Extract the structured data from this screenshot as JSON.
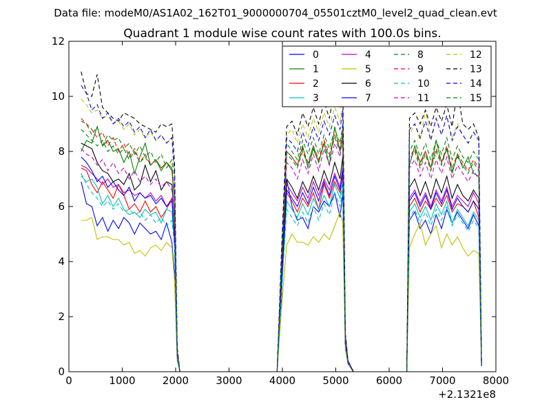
{
  "suptitle": "Data file: modeM0/AS1A02_162T01_9000000704_05501cztM0_level2_quad_clean.evt",
  "chart_data": {
    "type": "line",
    "title": "Quadrant 1 module wise count rates with 100.0s bins.",
    "xlabel": "",
    "ylabel": "",
    "x_offset_label": "+2.1321e8",
    "xlim": [
      0,
      8000
    ],
    "ylim": [
      0,
      12
    ],
    "xticks": [
      0,
      1000,
      2000,
      3000,
      4000,
      5000,
      6000,
      7000,
      8000
    ],
    "yticks": [
      0,
      2,
      4,
      6,
      8,
      10,
      12
    ],
    "grid": false,
    "legend_position": "top-right",
    "x": [
      230,
      330,
      430,
      530,
      630,
      730,
      830,
      930,
      1030,
      1130,
      1230,
      1330,
      1430,
      1530,
      1630,
      1730,
      1830,
      1930,
      1980,
      2030,
      2080,
      2150,
      3900,
      3980,
      4080,
      4180,
      4280,
      4380,
      4480,
      4580,
      4680,
      4780,
      4880,
      4980,
      5080,
      5130,
      5180,
      5230,
      5330,
      6330,
      6380,
      6480,
      6580,
      6680,
      6780,
      6880,
      6980,
      7080,
      7180,
      7280,
      7380,
      7480,
      7580,
      7680,
      7730
    ],
    "series": [
      {
        "name": "0",
        "color": "#0000ff",
        "dashed": false,
        "values": [
          6.9,
          6.1,
          6.0,
          5.3,
          5.6,
          5.1,
          5.5,
          5.2,
          5.6,
          5.4,
          5.0,
          5.4,
          5.2,
          5.0,
          5.1,
          4.8,
          5.4,
          4.7,
          3.5,
          0.5,
          0.0,
          0.0,
          0.0,
          2.5,
          7.0,
          6.0,
          5.5,
          5.6,
          5.2,
          6.0,
          5.8,
          6.2,
          6.0,
          6.5,
          5.6,
          6.5,
          1.0,
          0.3,
          0.0,
          0.0,
          5.5,
          5.8,
          5.2,
          5.5,
          5.0,
          5.7,
          5.2,
          5.9,
          5.4,
          5.8,
          5.5,
          5.2,
          5.7,
          5.3,
          0.2
        ]
      },
      {
        "name": "1",
        "color": "#008000",
        "dashed": false,
        "values": [
          8.0,
          8.4,
          8.3,
          8.9,
          8.2,
          8.4,
          8.0,
          8.1,
          7.6,
          8.0,
          7.2,
          7.8,
          8.3,
          7.5,
          7.7,
          7.3,
          7.6,
          7.4,
          6.2,
          0.7,
          0.0,
          0.0,
          0.0,
          3.5,
          8.0,
          7.8,
          7.5,
          8.2,
          7.4,
          8.1,
          7.6,
          8.3,
          7.5,
          8.9,
          8.0,
          8.5,
          1.1,
          0.4,
          0.0,
          0.0,
          7.5,
          8.2,
          7.6,
          8.0,
          7.4,
          8.4,
          7.6,
          8.1,
          7.2,
          7.9,
          7.4,
          7.8,
          7.2,
          7.1,
          0.3
        ]
      },
      {
        "name": "2",
        "color": "#ff0000",
        "dashed": false,
        "values": [
          7.4,
          7.3,
          6.8,
          6.5,
          6.9,
          6.6,
          6.3,
          6.8,
          6.4,
          5.9,
          6.1,
          5.8,
          6.2,
          5.8,
          6.0,
          5.6,
          5.9,
          6.3,
          4.8,
          0.5,
          0.0,
          0.0,
          0.0,
          3.0,
          6.5,
          6.2,
          5.8,
          6.3,
          6.0,
          6.5,
          5.9,
          6.8,
          6.3,
          6.9,
          6.5,
          7.2,
          1.0,
          0.3,
          0.0,
          0.0,
          6.0,
          6.3,
          5.8,
          6.2,
          5.9,
          6.3,
          6.0,
          6.4,
          5.8,
          6.1,
          6.0,
          5.8,
          6.2,
          5.6,
          0.3
        ]
      },
      {
        "name": "3",
        "color": "#00bfbf",
        "dashed": false,
        "values": [
          7.1,
          6.9,
          7.0,
          6.7,
          6.1,
          6.4,
          6.0,
          6.3,
          5.9,
          5.7,
          5.8,
          5.6,
          5.9,
          5.7,
          5.8,
          5.4,
          5.9,
          5.8,
          4.7,
          0.5,
          0.0,
          0.0,
          0.0,
          2.8,
          6.2,
          5.9,
          5.6,
          6.1,
          5.7,
          6.3,
          5.9,
          6.4,
          6.0,
          6.8,
          6.3,
          6.9,
          1.0,
          0.3,
          0.0,
          0.0,
          5.8,
          6.1,
          5.6,
          6.0,
          5.5,
          6.1,
          5.7,
          6.2,
          5.4,
          5.9,
          5.6,
          5.3,
          5.8,
          5.5,
          0.2
        ]
      },
      {
        "name": "4",
        "color": "#bf00bf",
        "dashed": false,
        "values": [
          7.5,
          7.4,
          7.2,
          7.0,
          6.8,
          7.0,
          6.7,
          6.8,
          6.5,
          6.6,
          6.4,
          6.5,
          6.3,
          6.5,
          6.2,
          6.4,
          6.0,
          6.3,
          4.9,
          0.6,
          0.0,
          0.0,
          0.0,
          3.1,
          6.8,
          6.5,
          6.2,
          6.7,
          6.3,
          6.9,
          6.4,
          7.0,
          6.6,
          7.2,
          6.7,
          7.4,
          1.0,
          0.3,
          0.0,
          0.0,
          6.3,
          6.6,
          6.1,
          6.5,
          6.0,
          6.6,
          6.2,
          6.7,
          6.0,
          6.4,
          6.2,
          6.0,
          6.5,
          6.1,
          0.3
        ]
      },
      {
        "name": "5",
        "color": "#bfbf00",
        "dashed": false,
        "values": [
          5.5,
          5.5,
          5.6,
          4.8,
          4.9,
          4.9,
          4.8,
          4.8,
          4.6,
          4.7,
          4.3,
          4.4,
          4.2,
          4.5,
          4.6,
          4.4,
          4.7,
          4.5,
          3.3,
          0.4,
          0.0,
          0.0,
          0.0,
          2.2,
          4.6,
          5.0,
          4.7,
          4.7,
          4.6,
          4.9,
          4.7,
          5.0,
          4.8,
          5.3,
          5.8,
          5.4,
          0.8,
          0.3,
          0.0,
          0.0,
          4.5,
          5.0,
          5.4,
          4.6,
          5.0,
          5.3,
          4.5,
          5.0,
          4.6,
          4.9,
          4.5,
          4.2,
          4.4,
          4.3,
          0.2
        ]
      },
      {
        "name": "6",
        "color": "#000000",
        "dashed": false,
        "values": [
          8.3,
          8.2,
          8.1,
          7.6,
          7.3,
          7.2,
          6.9,
          7.0,
          6.8,
          7.2,
          6.6,
          6.8,
          7.5,
          6.9,
          7.3,
          6.6,
          6.9,
          6.8,
          5.5,
          0.6,
          0.0,
          0.0,
          0.0,
          3.2,
          7.0,
          6.7,
          6.3,
          6.9,
          6.5,
          7.1,
          6.6,
          7.3,
          6.8,
          7.6,
          7.0,
          7.8,
          1.0,
          0.3,
          0.0,
          0.0,
          6.7,
          7.0,
          6.4,
          6.9,
          6.3,
          7.0,
          6.5,
          7.1,
          6.3,
          6.8,
          6.4,
          6.2,
          6.6,
          6.3,
          0.3
        ]
      },
      {
        "name": "7",
        "color": "#0000ff",
        "dashed": false,
        "values": [
          7.8,
          7.6,
          7.3,
          6.9,
          7.1,
          6.7,
          6.9,
          6.6,
          6.4,
          6.7,
          6.2,
          6.5,
          6.3,
          6.4,
          6.1,
          6.3,
          6.0,
          6.2,
          4.8,
          0.5,
          0.0,
          0.0,
          0.0,
          3.0,
          6.6,
          6.3,
          6.0,
          6.5,
          6.1,
          6.7,
          6.2,
          6.9,
          6.4,
          7.1,
          6.6,
          7.3,
          1.0,
          0.3,
          0.0,
          0.0,
          6.2,
          6.5,
          6.0,
          6.4,
          5.9,
          6.5,
          6.1,
          6.6,
          5.9,
          6.3,
          6.0,
          5.8,
          6.2,
          5.9,
          0.2
        ]
      },
      {
        "name": "8",
        "color": "#008000",
        "dashed": true,
        "values": [
          9.1,
          9.0,
          8.6,
          8.9,
          8.2,
          8.6,
          8.4,
          8.5,
          8.1,
          8.3,
          7.9,
          8.2,
          7.8,
          8.0,
          7.6,
          7.9,
          7.4,
          7.7,
          6.3,
          0.7,
          0.0,
          0.0,
          0.0,
          3.7,
          8.3,
          8.0,
          7.7,
          8.4,
          7.9,
          8.5,
          7.9,
          8.6,
          8.1,
          8.8,
          8.3,
          9.0,
          1.2,
          0.4,
          0.0,
          0.0,
          8.0,
          8.4,
          7.8,
          8.3,
          7.7,
          8.4,
          7.9,
          8.5,
          7.7,
          8.2,
          7.8,
          7.6,
          8.0,
          7.7,
          0.3
        ]
      },
      {
        "name": "9",
        "color": "#ff0000",
        "dashed": true,
        "values": [
          9.2,
          9.0,
          8.8,
          8.5,
          8.7,
          8.2,
          8.5,
          8.0,
          8.3,
          7.8,
          8.1,
          7.6,
          7.9,
          7.5,
          7.7,
          7.4,
          7.6,
          7.3,
          6.2,
          0.7,
          0.0,
          0.0,
          0.0,
          3.6,
          8.0,
          7.8,
          7.5,
          8.1,
          7.6,
          8.2,
          7.7,
          8.4,
          7.9,
          8.6,
          8.1,
          8.8,
          1.1,
          0.4,
          0.0,
          0.0,
          7.8,
          8.1,
          7.5,
          8.0,
          7.4,
          8.1,
          7.6,
          8.2,
          7.4,
          7.9,
          7.6,
          7.3,
          7.7,
          7.4,
          0.3
        ]
      },
      {
        "name": "10",
        "color": "#00bfbf",
        "dashed": true,
        "values": [
          7.2,
          6.8,
          6.5,
          6.3,
          6.0,
          6.2,
          5.9,
          6.1,
          5.8,
          5.9,
          5.7,
          5.8,
          5.5,
          5.7,
          5.4,
          5.6,
          5.3,
          5.5,
          4.5,
          0.5,
          0.0,
          0.0,
          0.0,
          2.7,
          5.9,
          5.6,
          5.3,
          5.8,
          5.4,
          6.0,
          5.5,
          6.1,
          5.7,
          6.5,
          6.0,
          6.7,
          1.0,
          0.3,
          0.0,
          0.0,
          5.6,
          5.9,
          5.4,
          5.8,
          5.3,
          5.9,
          5.5,
          6.0,
          5.3,
          5.7,
          5.4,
          5.1,
          5.5,
          5.2,
          0.2
        ]
      },
      {
        "name": "11",
        "color": "#bf00bf",
        "dashed": true,
        "values": [
          8.1,
          7.9,
          7.8,
          7.5,
          7.7,
          7.3,
          7.6,
          7.2,
          7.4,
          7.0,
          7.3,
          6.9,
          7.1,
          6.8,
          7.0,
          6.7,
          6.9,
          6.6,
          5.6,
          0.6,
          0.0,
          0.0,
          0.0,
          3.4,
          7.6,
          7.4,
          7.0,
          7.7,
          7.2,
          7.9,
          7.3,
          8.1,
          7.5,
          8.3,
          7.8,
          8.5,
          1.1,
          0.3,
          0.0,
          0.0,
          7.4,
          7.7,
          7.1,
          7.6,
          7.0,
          7.7,
          7.2,
          7.8,
          7.0,
          7.5,
          7.2,
          6.9,
          7.3,
          7.0,
          0.3
        ]
      },
      {
        "name": "12",
        "color": "#bfbf00",
        "dashed": true,
        "values": [
          9.9,
          9.7,
          9.4,
          9.5,
          9.2,
          9.3,
          9.0,
          9.1,
          8.8,
          9.0,
          8.6,
          8.8,
          8.5,
          8.7,
          8.4,
          8.6,
          8.3,
          8.5,
          7.2,
          0.8,
          0.0,
          0.0,
          0.0,
          4.0,
          8.6,
          8.8,
          8.3,
          9.0,
          8.5,
          9.2,
          8.7,
          9.4,
          8.9,
          9.6,
          9.1,
          9.8,
          1.3,
          0.4,
          0.0,
          0.0,
          8.6,
          9.0,
          8.4,
          9.5,
          8.5,
          9.2,
          8.6,
          9.3,
          8.5,
          9.0,
          8.6,
          8.3,
          8.7,
          8.4,
          0.3
        ]
      },
      {
        "name": "13",
        "color": "#000000",
        "dashed": true,
        "values": [
          10.9,
          10.1,
          10.0,
          10.8,
          9.6,
          9.4,
          9.2,
          9.1,
          9.4,
          9.3,
          9.2,
          9.0,
          8.9,
          8.8,
          8.7,
          9.0,
          8.9,
          9.0,
          7.6,
          0.9,
          0.0,
          0.0,
          0.0,
          4.2,
          8.9,
          9.1,
          8.6,
          9.4,
          8.9,
          9.6,
          9.0,
          9.8,
          9.2,
          10.3,
          9.6,
          10.8,
          1.4,
          0.4,
          0.0,
          0.0,
          9.2,
          9.4,
          9.0,
          9.5,
          8.9,
          9.6,
          9.1,
          9.7,
          8.9,
          10.2,
          9.0,
          8.8,
          9.0,
          8.5,
          0.3
        ]
      },
      {
        "name": "14",
        "color": "#0000ff",
        "dashed": true,
        "values": [
          10.4,
          10.1,
          9.5,
          9.7,
          9.2,
          9.4,
          9.0,
          9.2,
          8.9,
          9.1,
          8.7,
          8.9,
          8.5,
          8.8,
          8.4,
          8.6,
          8.3,
          8.5,
          7.1,
          0.8,
          0.0,
          0.0,
          0.0,
          3.9,
          8.5,
          8.3,
          8.0,
          8.7,
          8.2,
          8.9,
          8.4,
          9.1,
          8.6,
          9.3,
          8.8,
          9.5,
          1.3,
          0.4,
          0.0,
          0.0,
          8.8,
          9.0,
          8.5,
          9.1,
          8.4,
          9.2,
          8.6,
          9.3,
          8.4,
          8.9,
          8.6,
          8.3,
          8.7,
          8.4,
          0.3
        ]
      },
      {
        "name": "15",
        "color": "#008000",
        "dashed": true,
        "values": [
          8.8,
          8.6,
          8.4,
          8.2,
          8.4,
          8.0,
          8.2,
          7.9,
          8.1,
          7.7,
          8.0,
          7.6,
          7.8,
          7.5,
          7.7,
          7.4,
          7.6,
          7.3,
          6.2,
          0.7,
          0.0,
          0.0,
          0.0,
          3.6,
          7.9,
          7.7,
          7.4,
          8.0,
          7.5,
          8.2,
          7.6,
          8.3,
          7.8,
          8.5,
          8.0,
          8.7,
          1.1,
          0.4,
          0.0,
          0.0,
          7.7,
          8.0,
          7.4,
          7.9,
          7.3,
          8.0,
          7.5,
          8.1,
          7.3,
          7.8,
          7.5,
          7.2,
          7.6,
          7.3,
          0.3
        ]
      }
    ]
  }
}
